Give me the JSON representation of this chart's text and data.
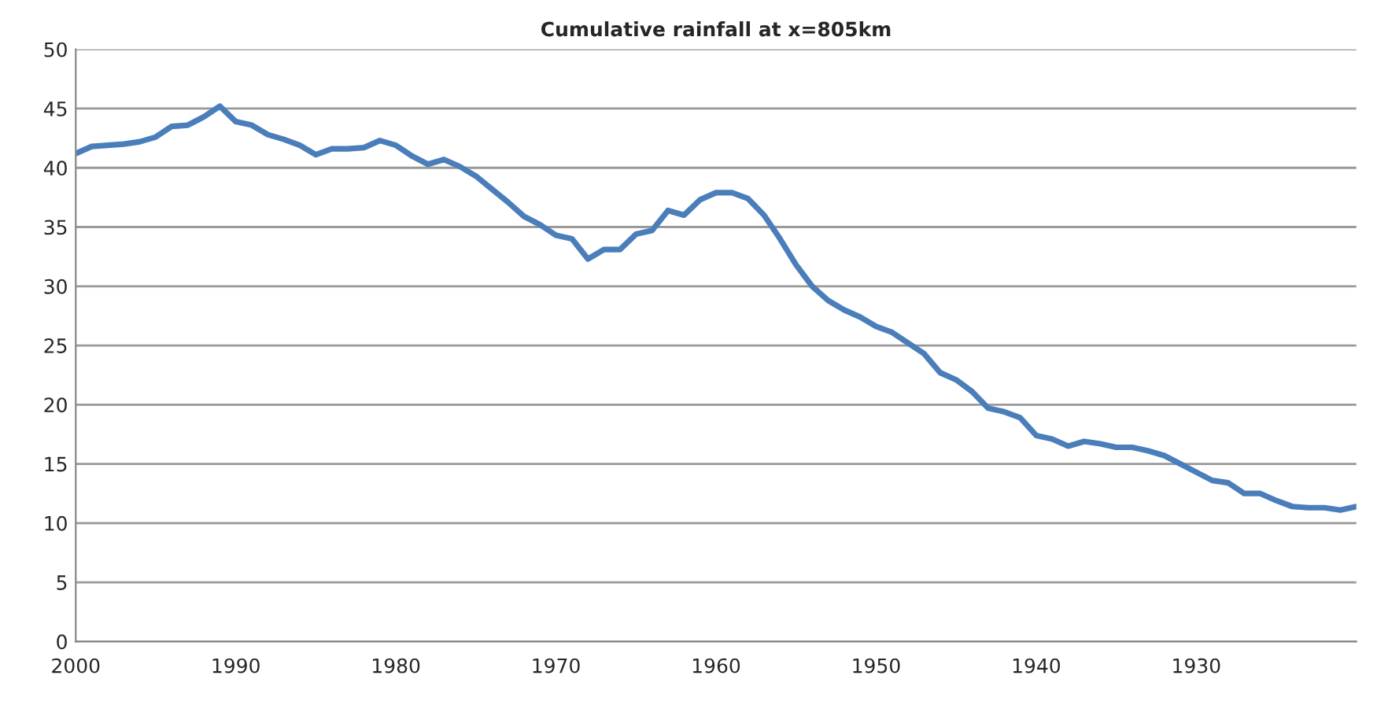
{
  "chart_data": {
    "type": "line",
    "title": "Cumulative rainfall at x=805km",
    "x": [
      2000,
      1999,
      1998,
      1997,
      1996,
      1995,
      1994,
      1993,
      1992,
      1991,
      1990,
      1989,
      1988,
      1987,
      1986,
      1985,
      1984,
      1983,
      1982,
      1981,
      1980,
      1979,
      1978,
      1977,
      1976,
      1975,
      1974,
      1973,
      1972,
      1971,
      1970,
      1969,
      1968,
      1967,
      1966,
      1965,
      1964,
      1963,
      1962,
      1961,
      1960,
      1959,
      1958,
      1957,
      1956,
      1955,
      1954,
      1953,
      1952,
      1951,
      1950,
      1949,
      1948,
      1947,
      1946,
      1945,
      1944,
      1943,
      1942,
      1941,
      1940,
      1939,
      1938,
      1937,
      1936,
      1935,
      1934,
      1933,
      1932,
      1931,
      1930,
      1929,
      1928,
      1927,
      1926,
      1925,
      1924,
      1923,
      1922,
      1921,
      1920
    ],
    "series": [
      {
        "color": "#4a7ebb",
        "values": [
          41.2,
          41.8,
          41.9,
          42.0,
          42.2,
          42.6,
          43.5,
          43.6,
          44.3,
          45.2,
          43.9,
          43.6,
          42.8,
          42.4,
          41.9,
          41.1,
          41.6,
          41.6,
          41.7,
          42.3,
          41.9,
          41.0,
          40.3,
          40.7,
          40.1,
          39.3,
          38.2,
          37.1,
          35.9,
          35.2,
          34.3,
          34.0,
          32.3,
          33.1,
          33.1,
          34.4,
          34.7,
          36.4,
          36.0,
          37.3,
          37.9,
          37.9,
          37.4,
          36.0,
          34.0,
          31.8,
          30.0,
          28.8,
          28.0,
          27.4,
          26.6,
          26.1,
          25.2,
          24.3,
          22.7,
          22.1,
          21.1,
          19.7,
          19.4,
          18.9,
          17.4,
          17.1,
          16.5,
          16.9,
          16.7,
          16.4,
          16.4,
          16.1,
          15.7,
          15.0,
          14.3,
          13.6,
          13.4,
          12.5,
          12.5,
          11.9,
          11.4,
          11.3,
          11.3,
          11.1,
          11.4
        ]
      }
    ],
    "xlim": [
      2000,
      1920
    ],
    "xticks": [
      2000,
      1990,
      1980,
      1970,
      1960,
      1950,
      1940,
      1930
    ],
    "ylim": [
      0,
      50
    ],
    "yticks": [
      0,
      5,
      10,
      15,
      20,
      25,
      30,
      35,
      40,
      45,
      50
    ],
    "grid": "y",
    "marker": "none",
    "line_style": "solid"
  }
}
